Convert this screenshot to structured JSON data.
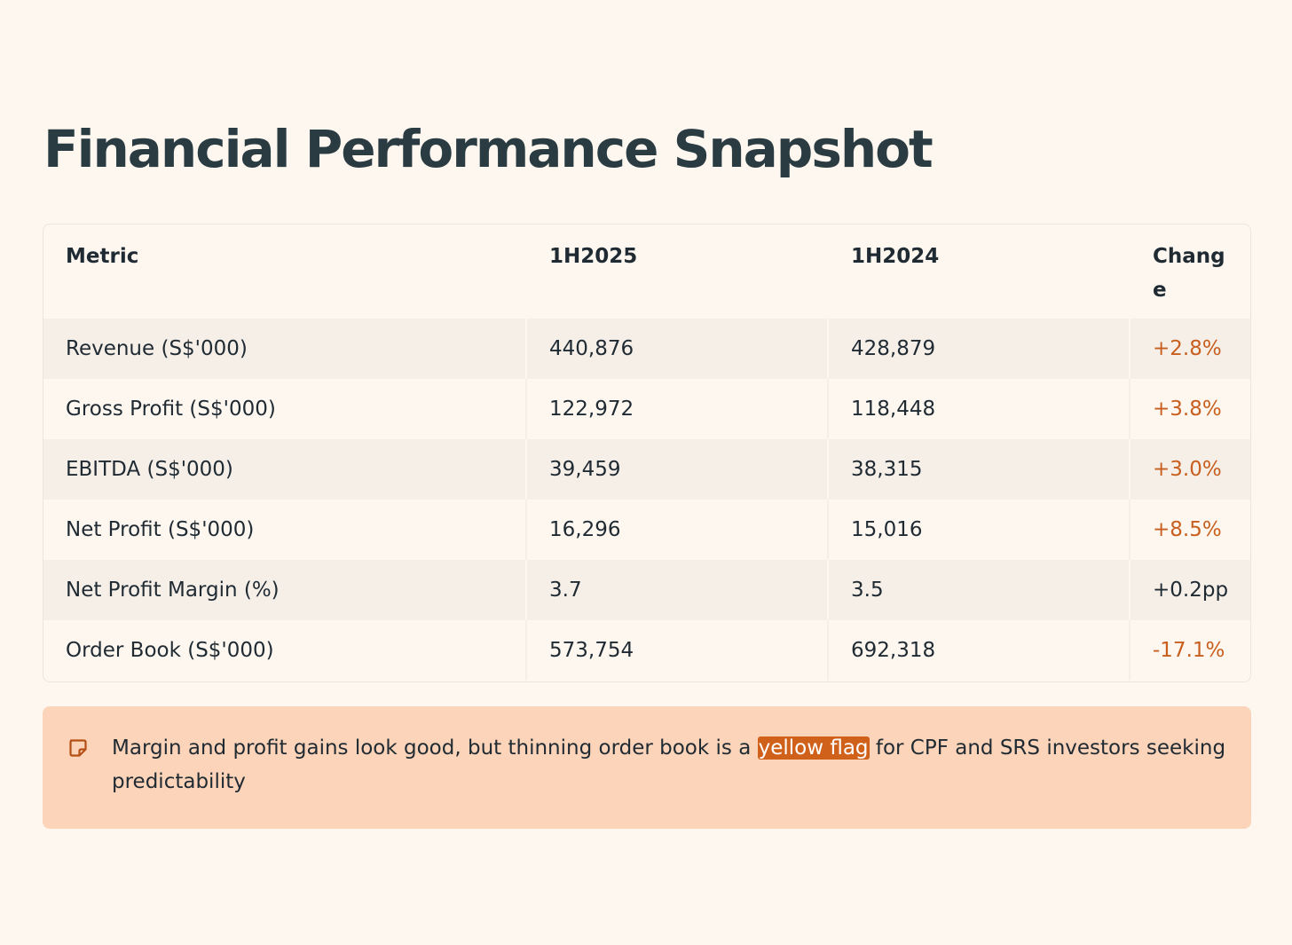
{
  "page_title": "Financial Performance Snapshot",
  "table": {
    "headers": [
      "Metric",
      "1H2025",
      "1H2024",
      "Change"
    ],
    "rows": [
      {
        "metric": "Revenue (S$'000)",
        "h1_2025": "440,876",
        "h1_2024": "428,879",
        "change": "+2.8%",
        "change_color": "#c85f1e"
      },
      {
        "metric": "Gross Profit (S$'000)",
        "h1_2025": "122,972",
        "h1_2024": "118,448",
        "change": "+3.8%",
        "change_color": "#c85f1e"
      },
      {
        "metric": "EBITDA (S$'000)",
        "h1_2025": "39,459",
        "h1_2024": "38,315",
        "change": "+3.0%",
        "change_color": "#c85f1e"
      },
      {
        "metric": "Net Profit (S$'000)",
        "h1_2025": "16,296",
        "h1_2024": "15,016",
        "change": "+8.5%",
        "change_color": "#c85f1e"
      },
      {
        "metric": "Net Profit Margin (%)",
        "h1_2025": "3.7",
        "h1_2024": "3.5",
        "change": "+0.2pp",
        "change_color": "#1f2a33"
      },
      {
        "metric": "Order Book (S$'000)",
        "h1_2025": "573,754",
        "h1_2024": "692,318",
        "change": "-17.1%",
        "change_color": "#c85f1e"
      }
    ]
  },
  "callout": {
    "icon": "note-icon",
    "text_before": "Margin and profit gains look good, but thinning order book is a ",
    "highlight": "yellow flag",
    "text_after": " for CPF and SRS investors seeking predictability",
    "background_color": "#fcd4b9",
    "highlight_color": "#d0611b"
  }
}
